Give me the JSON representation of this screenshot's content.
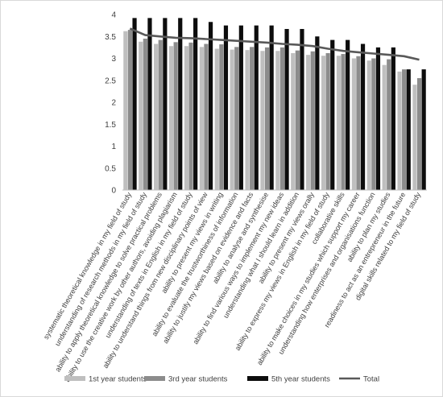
{
  "chart_data": {
    "type": "bar",
    "title": "",
    "xlabel": "",
    "ylabel": "",
    "ylim": [
      0,
      4
    ],
    "yticks": [
      0,
      0.5,
      1,
      1.5,
      2,
      2.5,
      3,
      3.5,
      4
    ],
    "grid": false,
    "legend_position": "bottom",
    "categories": [
      "systematic theoretical knowledge in my field of study",
      "understanding of research methods in my field of study",
      "ability to apply theoretical knowledge to solve practical problems",
      "ability to use the creative work by other authors, avoiding plagiarism",
      "understanding of texts in English in my field of study",
      "ability to understand things from new disciplinary points of view",
      "ability to present my views in writing",
      "ability to evaluate the trustworthiness of information",
      "ability to justify my views based on evidence and facts",
      "ability to analyse and synthesise",
      "ability to find various ways to implement my new ideas",
      "understanding what I should learn in addition",
      "ability to present my views orally",
      "ability to express my views in English in my field of study",
      "collaborative skills",
      "ability to make choices in my studies which support my career",
      "understanding how enterprises and organisations function",
      "ability to plan my studies",
      "readiness to act as an entrepreneur in the future",
      "digital skills related to my field of study"
    ],
    "series": [
      {
        "name": "1st year students",
        "kind": "bar",
        "color": "#bfbfbf",
        "values": [
          3.62,
          3.38,
          3.33,
          3.28,
          3.28,
          3.26,
          3.22,
          3.2,
          3.19,
          3.17,
          3.17,
          3.12,
          3.08,
          3.06,
          3.06,
          3.0,
          2.95,
          2.85,
          2.7,
          2.4
        ]
      },
      {
        "name": "3rd year students",
        "kind": "bar",
        "color": "#8c8c8c",
        "values": [
          3.65,
          3.45,
          3.42,
          3.37,
          3.36,
          3.33,
          3.32,
          3.26,
          3.26,
          3.25,
          3.25,
          3.18,
          3.16,
          3.12,
          3.1,
          3.05,
          3.0,
          2.98,
          2.75,
          2.55
        ]
      },
      {
        "name": "5th year students",
        "kind": "bar",
        "color": "#0d0d0d",
        "values": [
          3.92,
          3.92,
          3.92,
          3.92,
          3.92,
          3.83,
          3.75,
          3.75,
          3.75,
          3.75,
          3.67,
          3.67,
          3.5,
          3.42,
          3.42,
          3.33,
          3.25,
          3.25,
          2.75,
          2.75
        ]
      },
      {
        "name": "Total",
        "kind": "line",
        "color": "#595959",
        "values": [
          3.68,
          3.53,
          3.5,
          3.47,
          3.46,
          3.44,
          3.42,
          3.4,
          3.38,
          3.36,
          3.33,
          3.31,
          3.28,
          3.22,
          3.17,
          3.14,
          3.11,
          3.08,
          3.05,
          2.97
        ]
      }
    ]
  }
}
